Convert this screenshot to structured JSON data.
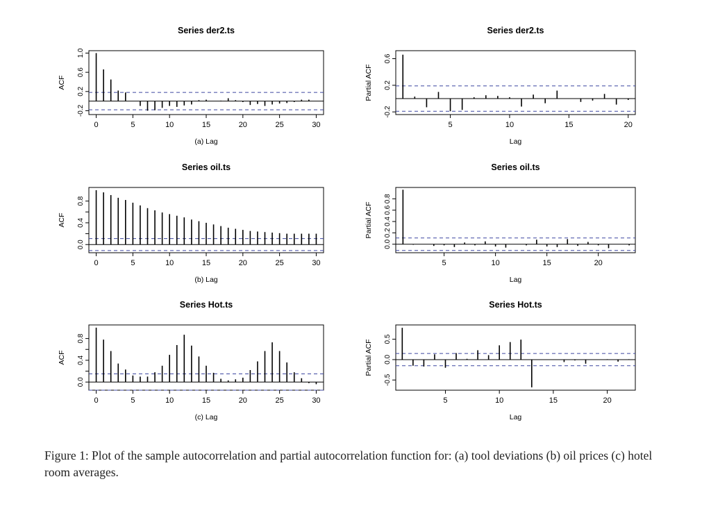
{
  "caption": "Figure 1: Plot of the sample autocorrelation and partial autocorrelation function for: (a) tool deviations (b) oil prices (c) hotel room averages.",
  "colors": {
    "bars": "#000000",
    "confidence_bound": "#3c46a0",
    "axes": "#000000"
  },
  "chart_data": [
    {
      "type": "bar",
      "subtype": "acf",
      "title": "Series der2.ts",
      "xlabel": "(a) Lag",
      "ylabel": "ACF",
      "xlim": [
        -1,
        31
      ],
      "ylim": [
        -0.28,
        1.05
      ],
      "xticks": [
        0,
        5,
        10,
        15,
        20,
        25,
        30
      ],
      "yticks": [
        -0.2,
        0.2,
        0.6,
        1.0
      ],
      "ytick_labels": [
        "-0.2",
        "0.2",
        "0.6",
        "1.0"
      ],
      "confidence_bound": 0.18,
      "x": [
        0,
        1,
        2,
        3,
        4,
        5,
        6,
        7,
        8,
        9,
        10,
        11,
        12,
        13,
        14,
        15,
        16,
        17,
        18,
        19,
        20,
        21,
        22,
        23,
        24,
        25,
        26,
        27,
        28,
        29,
        30
      ],
      "values": [
        1.0,
        0.66,
        0.45,
        0.22,
        0.18,
        0.0,
        -0.1,
        -0.2,
        -0.19,
        -0.14,
        -0.1,
        -0.12,
        -0.09,
        -0.07,
        0.02,
        0.03,
        0.0,
        0.01,
        0.06,
        0.02,
        -0.02,
        -0.08,
        -0.06,
        -0.1,
        -0.07,
        -0.05,
        -0.04,
        -0.02,
        0.03,
        0.03,
        0.0
      ]
    },
    {
      "type": "bar",
      "subtype": "pacf",
      "title": "Series der2.ts",
      "xlabel": "Lag",
      "ylabel": "Partial ACF",
      "xlim": [
        0.4,
        20.6
      ],
      "ylim": [
        -0.24,
        0.72
      ],
      "xticks": [
        5,
        10,
        15,
        20
      ],
      "yticks": [
        -0.2,
        0.2,
        0.6
      ],
      "ytick_labels": [
        "-0.2",
        "0.2",
        "0.6"
      ],
      "confidence_bound": 0.19,
      "x": [
        1,
        2,
        3,
        4,
        5,
        6,
        7,
        8,
        9,
        10,
        11,
        12,
        13,
        14,
        15,
        16,
        17,
        18,
        19,
        20
      ],
      "values": [
        0.66,
        0.03,
        -0.13,
        0.1,
        -0.19,
        -0.17,
        0.02,
        0.05,
        0.04,
        0.02,
        -0.12,
        0.06,
        -0.07,
        0.12,
        0.0,
        -0.05,
        -0.03,
        0.07,
        -0.09,
        -0.02
      ]
    },
    {
      "type": "bar",
      "subtype": "acf",
      "title": "Series oil.ts",
      "xlabel": "(b) Lag",
      "ylabel": "ACF",
      "xlim": [
        -1,
        31
      ],
      "ylim": [
        -0.15,
        1.05
      ],
      "xticks": [
        0,
        5,
        10,
        15,
        20,
        25,
        30
      ],
      "yticks": [
        0.0,
        0.4,
        0.8
      ],
      "ytick_labels": [
        "0.0",
        "0.4",
        "0.8"
      ],
      "yminor_ticks": [
        0.2,
        0.6
      ],
      "confidence_bound": 0.11,
      "x": [
        0,
        1,
        2,
        3,
        4,
        5,
        6,
        7,
        8,
        9,
        10,
        11,
        12,
        13,
        14,
        15,
        16,
        17,
        18,
        19,
        20,
        21,
        22,
        23,
        24,
        25,
        26,
        27,
        28,
        29,
        30
      ],
      "values": [
        1.0,
        0.96,
        0.91,
        0.86,
        0.82,
        0.77,
        0.72,
        0.67,
        0.63,
        0.59,
        0.56,
        0.53,
        0.5,
        0.46,
        0.43,
        0.4,
        0.37,
        0.34,
        0.31,
        0.29,
        0.27,
        0.25,
        0.24,
        0.23,
        0.22,
        0.21,
        0.2,
        0.2,
        0.2,
        0.2,
        0.2
      ]
    },
    {
      "type": "bar",
      "subtype": "pacf",
      "title": "Series oil.ts",
      "xlabel": "Lag",
      "ylabel": "Partial ACF",
      "xlim": [
        0.3,
        23.6
      ],
      "ylim": [
        -0.15,
        1.0
      ],
      "xticks": [
        5,
        10,
        15,
        20
      ],
      "yticks": [
        0.0,
        0.2,
        0.4,
        0.6,
        0.8
      ],
      "ytick_labels": [
        "0.0",
        "0.2",
        "0.4",
        "0.6",
        "0.8"
      ],
      "confidence_bound": 0.11,
      "x": [
        1,
        2,
        3,
        4,
        5,
        6,
        7,
        8,
        9,
        10,
        11,
        12,
        13,
        14,
        15,
        16,
        17,
        18,
        19,
        20,
        21,
        22,
        23
      ],
      "values": [
        0.96,
        -0.01,
        0.0,
        -0.03,
        -0.02,
        -0.05,
        0.03,
        -0.02,
        0.05,
        -0.04,
        -0.06,
        0.0,
        -0.02,
        0.08,
        -0.04,
        -0.05,
        0.09,
        -0.03,
        0.04,
        -0.02,
        -0.07,
        0.0,
        -0.02
      ]
    },
    {
      "type": "bar",
      "subtype": "acf",
      "title": "Series Hot.ts",
      "xlabel": "(c) Lag",
      "ylabel": "ACF",
      "xlim": [
        -1,
        31
      ],
      "ylim": [
        -0.15,
        1.05
      ],
      "xticks": [
        0,
        5,
        10,
        15,
        20,
        25,
        30
      ],
      "yticks": [
        0.0,
        0.4,
        0.8
      ],
      "ytick_labels": [
        "0.0",
        "0.4",
        "0.8"
      ],
      "yminor_ticks": [
        0.2,
        0.6
      ],
      "confidence_bound": 0.15,
      "x": [
        0,
        1,
        2,
        3,
        4,
        5,
        6,
        7,
        8,
        9,
        10,
        11,
        12,
        13,
        14,
        15,
        16,
        17,
        18,
        19,
        20,
        21,
        22,
        23,
        24,
        25,
        26,
        27,
        28,
        29,
        30
      ],
      "values": [
        1.0,
        0.78,
        0.57,
        0.34,
        0.23,
        0.12,
        0.1,
        0.1,
        0.18,
        0.3,
        0.5,
        0.68,
        0.87,
        0.67,
        0.47,
        0.3,
        0.17,
        0.06,
        0.03,
        0.05,
        0.08,
        0.22,
        0.38,
        0.57,
        0.73,
        0.57,
        0.36,
        0.18,
        0.07,
        -0.02,
        -0.04
      ]
    },
    {
      "type": "bar",
      "subtype": "pacf",
      "title": "Series Hot.ts",
      "xlabel": "Lag",
      "ylabel": "Partial ACF",
      "xlim": [
        0.4,
        22.6
      ],
      "ylim": [
        -0.75,
        0.85
      ],
      "xticks": [
        5,
        10,
        15,
        20
      ],
      "yticks": [
        -0.5,
        0.0,
        0.5
      ],
      "ytick_labels": [
        "-0.5",
        "0.0",
        "0.5"
      ],
      "confidence_bound": 0.15,
      "x": [
        1,
        2,
        3,
        4,
        5,
        6,
        7,
        8,
        9,
        10,
        11,
        12,
        13,
        14,
        15,
        16,
        17,
        18,
        19,
        20,
        21,
        22
      ],
      "values": [
        0.78,
        -0.15,
        -0.17,
        0.13,
        -0.2,
        0.16,
        0.02,
        0.23,
        0.11,
        0.35,
        0.43,
        0.49,
        -0.68,
        0.0,
        -0.01,
        -0.06,
        -0.02,
        -0.1,
        0.0,
        0.01,
        -0.05,
        0.01
      ]
    }
  ]
}
